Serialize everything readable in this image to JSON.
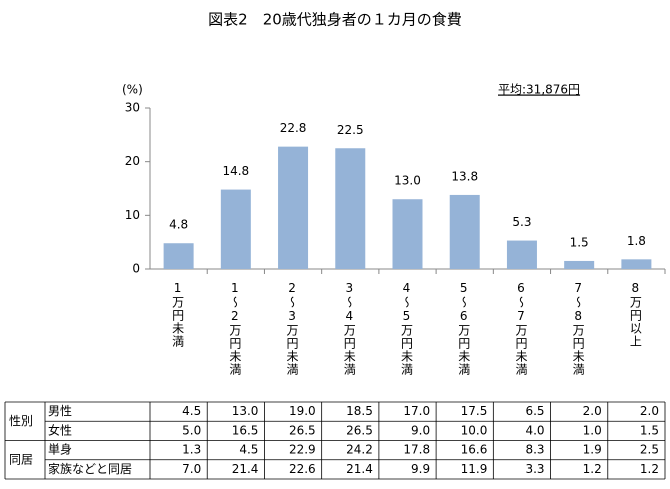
{
  "chart_data": {
    "type": "bar",
    "title": "図表2　20歳代独身者の１カ月の食費",
    "y_label": "(%)",
    "annotation": "平均:31,876円",
    "categories": [
      "1万円未満",
      "1～2万円未満",
      "2～3万円未満",
      "3～4万円未満",
      "4～5万円未満",
      "5～6万円未満",
      "6～7万円未満",
      "7～8万円未満",
      "8万円以上"
    ],
    "values": [
      4.8,
      14.8,
      22.8,
      22.5,
      13.0,
      13.8,
      5.3,
      1.5,
      1.8
    ],
    "value_labels": [
      "4.8",
      "14.8",
      "22.8",
      "22.5",
      "13.0",
      "13.8",
      "5.3",
      "1.5",
      "1.8"
    ],
    "color": "#95b3d7",
    "ylim": [
      0,
      30
    ],
    "yticks": [
      0,
      10,
      20,
      30
    ],
    "grid": false
  },
  "table": {
    "groups": [
      {
        "label": "性別",
        "rows": [
          {
            "label": "男性",
            "values": [
              "4.5",
              "13.0",
              "19.0",
              "18.5",
              "17.0",
              "17.5",
              "6.5",
              "2.0",
              "2.0"
            ]
          },
          {
            "label": "女性",
            "values": [
              "5.0",
              "16.5",
              "26.5",
              "26.5",
              "9.0",
              "10.0",
              "4.0",
              "1.0",
              "1.5"
            ]
          }
        ]
      },
      {
        "label": "同居",
        "rows": [
          {
            "label": "単身",
            "values": [
              "1.3",
              "4.5",
              "22.9",
              "24.2",
              "17.8",
              "16.6",
              "8.3",
              "1.9",
              "2.5"
            ]
          },
          {
            "label": "家族などと同居",
            "values": [
              "7.0",
              "21.4",
              "22.6",
              "21.4",
              "9.9",
              "11.9",
              "3.3",
              "1.2",
              "1.2"
            ]
          }
        ]
      }
    ]
  }
}
